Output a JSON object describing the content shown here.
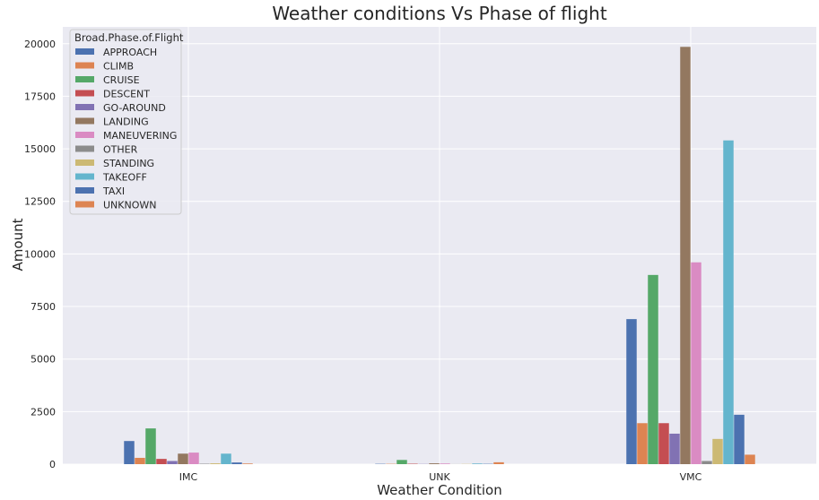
{
  "chart_data": {
    "type": "bar",
    "title": "Weather conditions Vs Phase of flight",
    "xlabel": "Weather Condition",
    "ylabel": "Amount",
    "categories": [
      "IMC",
      "UNK",
      "VMC"
    ],
    "ylim": [
      0,
      20800
    ],
    "yticks": [
      0,
      2500,
      5000,
      7500,
      10000,
      12500,
      15000,
      17500,
      20000
    ],
    "grid": true,
    "legend": {
      "title": "Broad.Phase.of.Flight",
      "placement": "top-left"
    },
    "series": [
      {
        "name": "APPROACH",
        "color": "#4c72b0",
        "values": [
          1100,
          15,
          6900
        ]
      },
      {
        "name": "CLIMB",
        "color": "#dd8452",
        "values": [
          300,
          15,
          1950
        ]
      },
      {
        "name": "CRUISE",
        "color": "#55a868",
        "values": [
          1700,
          200,
          9000
        ]
      },
      {
        "name": "DESCENT",
        "color": "#c44e52",
        "values": [
          250,
          20,
          1950
        ]
      },
      {
        "name": "GO-AROUND",
        "color": "#8172b3",
        "values": [
          150,
          10,
          1450
        ]
      },
      {
        "name": "LANDING",
        "color": "#937860",
        "values": [
          500,
          40,
          19850
        ]
      },
      {
        "name": "MANEUVERING",
        "color": "#da8bc3",
        "values": [
          550,
          30,
          9600
        ]
      },
      {
        "name": "OTHER",
        "color": "#8c8c8c",
        "values": [
          20,
          5,
          150
        ]
      },
      {
        "name": "STANDING",
        "color": "#ccb974",
        "values": [
          40,
          10,
          1200
        ]
      },
      {
        "name": "TAKEOFF",
        "color": "#64b5cd",
        "values": [
          500,
          30,
          15400
        ]
      },
      {
        "name": "TAXI",
        "color": "#4c72b0",
        "values": [
          80,
          15,
          2350
        ]
      },
      {
        "name": "UNKNOWN",
        "color": "#dd8452",
        "values": [
          30,
          90,
          450
        ]
      }
    ]
  },
  "colors": {
    "plot_background": "#eaeaf2",
    "grid": "#ffffff"
  }
}
